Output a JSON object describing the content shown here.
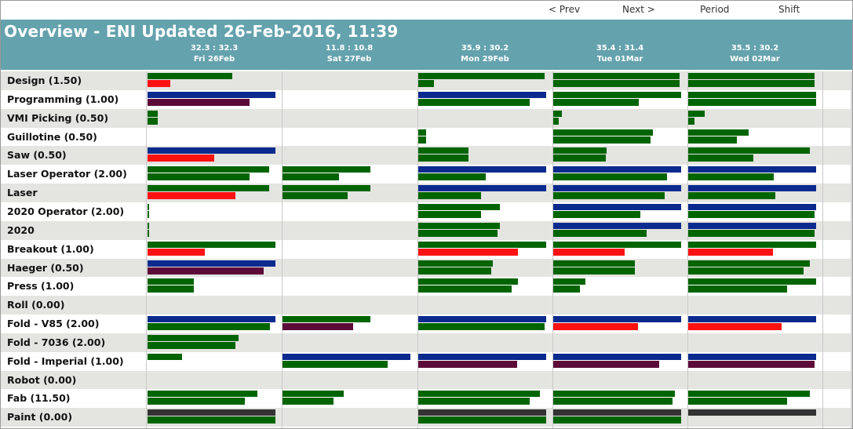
{
  "nav": {
    "prev": "< Prev",
    "next": "Next >",
    "period": "Period",
    "shift": "Shift"
  },
  "title": "Overview - ENI Updated 26-Feb-2016, 11:39",
  "days": [
    {
      "ratio": "32.3 : 32.3",
      "label": "Fri 26Feb"
    },
    {
      "ratio": "11.8 : 10.8",
      "label": "Sat 27Feb"
    },
    {
      "ratio": "35.9 : 30.2",
      "label": "Mon 29Feb"
    },
    {
      "ratio": "35.4 : 31.4",
      "label": "Tue 01Mar"
    },
    {
      "ratio": "35.5 : 30.2",
      "label": "Wed 02Mar"
    }
  ],
  "colors": {
    "green": "#006400",
    "blue": "#0a2a8e",
    "red": "#ff1111",
    "maroon": "#5c0a38",
    "gray": "#333333",
    "banner": "#64a2ad"
  },
  "rows": [
    {
      "label": "Design (1.50)",
      "cells": [
        [
          [
            "green",
            0.66
          ],
          [
            "red",
            0.18
          ]
        ],
        [],
        [
          [
            "green",
            0.99
          ],
          [
            "green",
            0.12
          ]
        ],
        [
          [
            "green",
            0.99
          ],
          [
            "green",
            0.99
          ]
        ],
        [
          [
            "green",
            0.99
          ],
          [
            "green",
            0.99
          ]
        ]
      ]
    },
    {
      "label": "Programming (1.00)",
      "cells": [
        [
          [
            "blue",
            1.0
          ],
          [
            "maroon",
            0.8
          ]
        ],
        [],
        [
          [
            "blue",
            1.0
          ],
          [
            "green",
            0.87
          ]
        ],
        [
          [
            "green",
            1.0
          ],
          [
            "green",
            0.67
          ]
        ],
        [
          [
            "green",
            1.0
          ],
          [
            "green",
            1.0
          ]
        ]
      ]
    },
    {
      "label": "VMI Picking (0.50)",
      "cells": [
        [
          [
            "green",
            0.08
          ],
          [
            "green",
            0.08
          ]
        ],
        [],
        [],
        [
          [
            "green",
            0.07
          ],
          [
            "green",
            0.04
          ]
        ],
        [
          [
            "green",
            0.13
          ],
          [
            "green",
            0.05
          ]
        ]
      ]
    },
    {
      "label": "Guillotine (0.50)",
      "cells": [
        [],
        [],
        [
          [
            "green",
            0.06
          ],
          [
            "green",
            0.06
          ]
        ],
        [
          [
            "green",
            0.78
          ],
          [
            "green",
            0.76
          ]
        ],
        [
          [
            "green",
            0.47
          ],
          [
            "green",
            0.38
          ]
        ]
      ]
    },
    {
      "label": "Saw (0.50)",
      "cells": [
        [
          [
            "blue",
            1.0
          ],
          [
            "red",
            0.52
          ]
        ],
        [],
        [
          [
            "green",
            0.39
          ],
          [
            "green",
            0.39
          ]
        ],
        [
          [
            "green",
            0.42
          ],
          [
            "green",
            0.41
          ]
        ],
        [
          [
            "green",
            0.95
          ],
          [
            "green",
            0.51
          ]
        ]
      ]
    },
    {
      "label": "Laser Operator (2.00)",
      "cells": [
        [
          [
            "green",
            0.95
          ],
          [
            "green",
            0.8
          ]
        ],
        [
          [
            "green",
            0.69
          ],
          [
            "green",
            0.44
          ]
        ],
        [
          [
            "blue",
            1.0
          ],
          [
            "green",
            0.53
          ]
        ],
        [
          [
            "blue",
            1.0
          ],
          [
            "green",
            0.89
          ]
        ],
        [
          [
            "blue",
            1.0
          ],
          [
            "green",
            0.67
          ]
        ]
      ]
    },
    {
      "label": "Laser",
      "cells": [
        [
          [
            "green",
            0.95
          ],
          [
            "red",
            0.69
          ]
        ],
        [
          [
            "green",
            0.69
          ],
          [
            "green",
            0.51
          ]
        ],
        [
          [
            "blue",
            1.0
          ],
          [
            "green",
            0.49
          ]
        ],
        [
          [
            "blue",
            1.0
          ],
          [
            "green",
            0.87
          ]
        ],
        [
          [
            "blue",
            1.0
          ],
          [
            "green",
            0.68
          ]
        ]
      ]
    },
    {
      "label": "2020 Operator (2.00)",
      "cells": [
        [
          [
            "green",
            0.01
          ],
          [
            "green",
            0.01
          ]
        ],
        [],
        [
          [
            "green",
            0.64
          ],
          [
            "green",
            0.49
          ]
        ],
        [
          [
            "blue",
            1.0
          ],
          [
            "green",
            0.68
          ]
        ],
        [
          [
            "blue",
            1.0
          ],
          [
            "green",
            0.99
          ]
        ]
      ]
    },
    {
      "label": "2020",
      "cells": [
        [
          [
            "green",
            0.01
          ],
          [
            "green",
            0.01
          ]
        ],
        [],
        [
          [
            "green",
            0.64
          ],
          [
            "green",
            0.62
          ]
        ],
        [
          [
            "blue",
            1.0
          ],
          [
            "green",
            0.73
          ]
        ],
        [
          [
            "blue",
            1.0
          ],
          [
            "green",
            0.99
          ]
        ]
      ]
    },
    {
      "label": "Breakout (1.00)",
      "cells": [
        [
          [
            "green",
            1.0
          ],
          [
            "red",
            0.45
          ]
        ],
        [],
        [
          [
            "green",
            1.0
          ],
          [
            "red",
            0.78
          ]
        ],
        [
          [
            "green",
            1.0
          ],
          [
            "red",
            0.56
          ]
        ],
        [
          [
            "green",
            1.0
          ],
          [
            "red",
            0.66
          ]
        ]
      ]
    },
    {
      "label": "Haeger (0.50)",
      "cells": [
        [
          [
            "blue",
            1.0
          ],
          [
            "maroon",
            0.91
          ]
        ],
        [],
        [
          [
            "green",
            0.58
          ],
          [
            "green",
            0.57
          ]
        ],
        [
          [
            "green",
            0.64
          ],
          [
            "green",
            0.64
          ]
        ],
        [
          [
            "green",
            0.95
          ],
          [
            "green",
            0.9
          ]
        ]
      ]
    },
    {
      "label": "Press (1.00)",
      "cells": [
        [
          [
            "green",
            0.36
          ],
          [
            "green",
            0.36
          ]
        ],
        [],
        [
          [
            "green",
            0.78
          ],
          [
            "green",
            0.73
          ]
        ],
        [
          [
            "green",
            0.25
          ],
          [
            "green",
            0.21
          ]
        ],
        [
          [
            "green",
            1.0
          ],
          [
            "green",
            0.77
          ]
        ]
      ]
    },
    {
      "label": "Roll (0.00)",
      "cells": [
        [],
        [],
        [],
        [],
        []
      ]
    },
    {
      "label": "Fold - V85 (2.00)",
      "cells": [
        [
          [
            "blue",
            1.0
          ],
          [
            "green",
            0.96
          ]
        ],
        [
          [
            "green",
            0.69
          ],
          [
            "maroon",
            0.55
          ]
        ],
        [
          [
            "blue",
            1.0
          ],
          [
            "green",
            0.99
          ]
        ],
        [
          [
            "blue",
            1.0
          ],
          [
            "red",
            0.66
          ]
        ],
        [
          [
            "blue",
            1.0
          ],
          [
            "red",
            0.73
          ]
        ]
      ]
    },
    {
      "label": "Fold - 7036 (2.00)",
      "cells": [
        [
          [
            "green",
            0.71
          ],
          [
            "green",
            0.69
          ]
        ],
        [],
        [],
        [],
        []
      ]
    },
    {
      "label": "Fold - Imperial (1.00)",
      "cells": [
        [
          [
            "green",
            0.27
          ],
          [
            "green",
            0.0
          ]
        ],
        [
          [
            "blue",
            1.0
          ],
          [
            "green",
            0.82
          ]
        ],
        [
          [
            "blue",
            1.0
          ],
          [
            "maroon",
            0.77
          ]
        ],
        [
          [
            "blue",
            1.0
          ],
          [
            "maroon",
            0.83
          ]
        ],
        [
          [
            "blue",
            1.0
          ],
          [
            "maroon",
            0.99
          ]
        ]
      ]
    },
    {
      "label": "Robot (0.00)",
      "cells": [
        [],
        [],
        [],
        [],
        []
      ]
    },
    {
      "label": "Fab (11.50)",
      "cells": [
        [
          [
            "green",
            0.86
          ],
          [
            "green",
            0.76
          ]
        ],
        [
          [
            "green",
            0.48
          ],
          [
            "green",
            0.4
          ]
        ],
        [
          [
            "green",
            0.95
          ],
          [
            "green",
            0.87
          ]
        ],
        [
          [
            "green",
            0.95
          ],
          [
            "green",
            0.93
          ]
        ],
        [
          [
            "green",
            0.95
          ],
          [
            "green",
            0.77
          ]
        ]
      ]
    },
    {
      "label": "Paint (0.00)",
      "cells": [
        [
          [
            "gray",
            1.0
          ],
          [
            "green",
            1.0
          ]
        ],
        [],
        [
          [
            "gray",
            1.0
          ],
          [
            "green",
            1.0
          ]
        ],
        [
          [
            "gray",
            1.0
          ],
          [
            "green",
            1.0
          ]
        ],
        [
          [
            "gray",
            1.0
          ],
          [
            "green",
            0.0
          ]
        ]
      ]
    }
  ]
}
